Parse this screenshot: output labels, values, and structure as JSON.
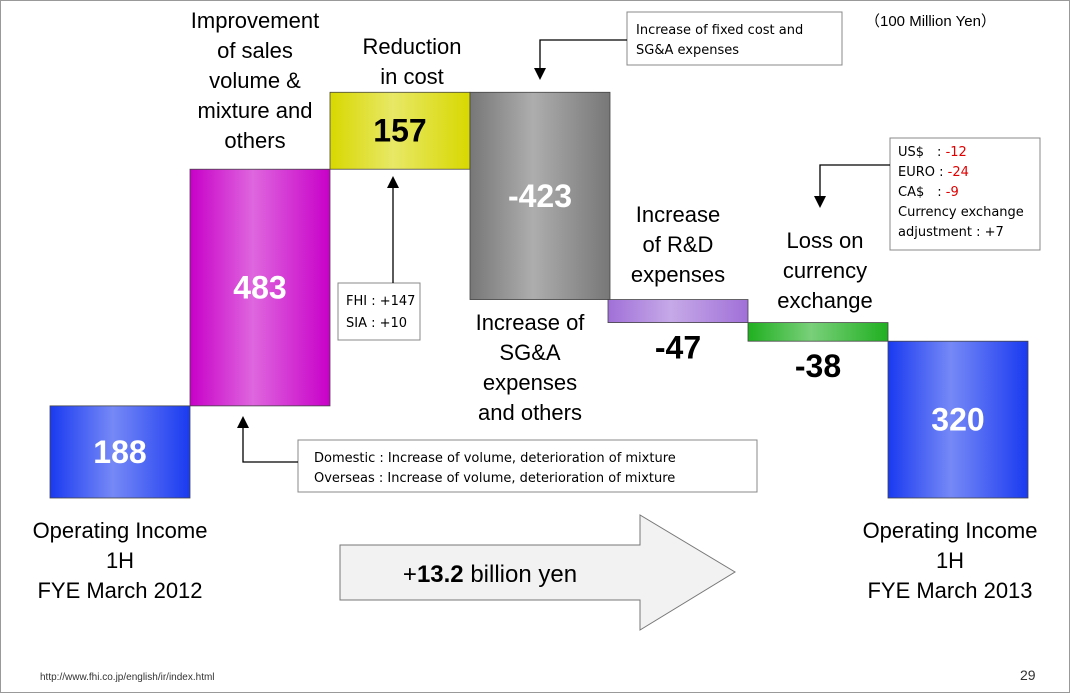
{
  "chart_data": {
    "type": "waterfall",
    "unit": "（100 Million Yen）",
    "categories": [
      [
        "Operating Income",
        "1H",
        "FYE March 2012"
      ],
      [
        "Improvement",
        "of sales",
        "volume &",
        "mixture and",
        "others"
      ],
      [
        "Reduction",
        "in cost"
      ],
      [
        "Increase of",
        "SG&A",
        "expenses",
        "and others"
      ],
      [
        "Increase",
        "of R&D",
        "expenses"
      ],
      [
        "Loss on",
        "currency",
        "exchange"
      ],
      [
        "Operating Income",
        "1H",
        "FYE March 2013"
      ]
    ],
    "values": [
      188,
      483,
      157,
      -423,
      -47,
      -38,
      320
    ],
    "totals": [
      true,
      false,
      false,
      false,
      false,
      false,
      true
    ],
    "colors": [
      "#1a3af0",
      "#c800c8",
      "#d8d800",
      "#777777",
      "#a070d8",
      "#20b020",
      "#1a3af0"
    ],
    "annotations": {
      "fixed_cost": [
        "Increase of fixed cost and",
        "SG&A expenses"
      ],
      "currency": [
        [
          "US$　:",
          "-12"
        ],
        [
          "EURO :",
          "-24"
        ],
        [
          "CA$　:",
          "-9"
        ],
        [
          "Currency exchange",
          ""
        ],
        [
          "adjustment : +7",
          ""
        ]
      ],
      "cost": [
        "FHI : +147",
        "SIA : +10"
      ],
      "volume": [
        "Domestic : Increase of volume, deterioration of mixture",
        "Overseas : Increase of volume, deterioration of mixture"
      ]
    },
    "summary": [
      "+",
      "13.2",
      " billion yen"
    ],
    "footer_url": "http://www.fhi.co.jp/english/ir/index.html",
    "page_number": "29"
  }
}
